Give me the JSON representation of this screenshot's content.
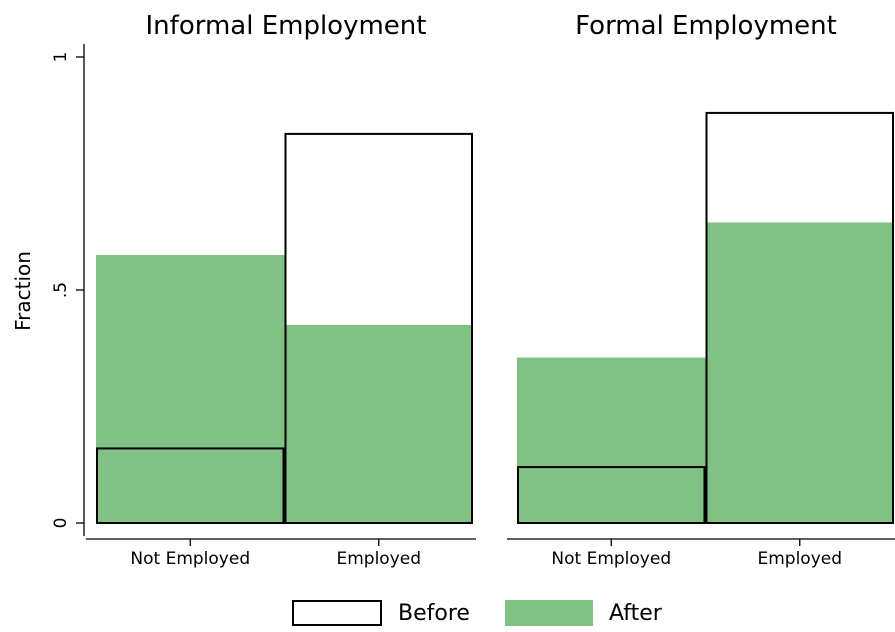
{
  "chart_data": [
    {
      "type": "bar",
      "title": "Informal Employment",
      "xlabel": "",
      "ylabel": "Fraction",
      "categories": [
        "Not Employed",
        "Employed"
      ],
      "ylim": [
        0,
        1
      ],
      "yticks": [
        0,
        0.5,
        1
      ],
      "ytick_labels": [
        "0",
        ".5",
        "1"
      ],
      "series": [
        {
          "name": "Before",
          "values": [
            0.16,
            0.835
          ]
        },
        {
          "name": "After",
          "values": [
            0.575,
            0.425
          ]
        }
      ]
    },
    {
      "type": "bar",
      "title": "Formal Employment",
      "xlabel": "",
      "ylabel": "",
      "categories": [
        "Not Employed",
        "Employed"
      ],
      "ylim": [
        0,
        1
      ],
      "series": [
        {
          "name": "Before",
          "values": [
            0.12,
            0.88
          ]
        },
        {
          "name": "After",
          "values": [
            0.355,
            0.645
          ]
        }
      ]
    }
  ],
  "legend": {
    "position": "bottom",
    "items": [
      {
        "label": "Before",
        "fill": "none",
        "stroke": "#000000"
      },
      {
        "label": "After",
        "fill": "#81c184",
        "stroke": "none"
      }
    ]
  },
  "colors": {
    "after_fill": "#81c184",
    "before_outline": "#000000"
  }
}
